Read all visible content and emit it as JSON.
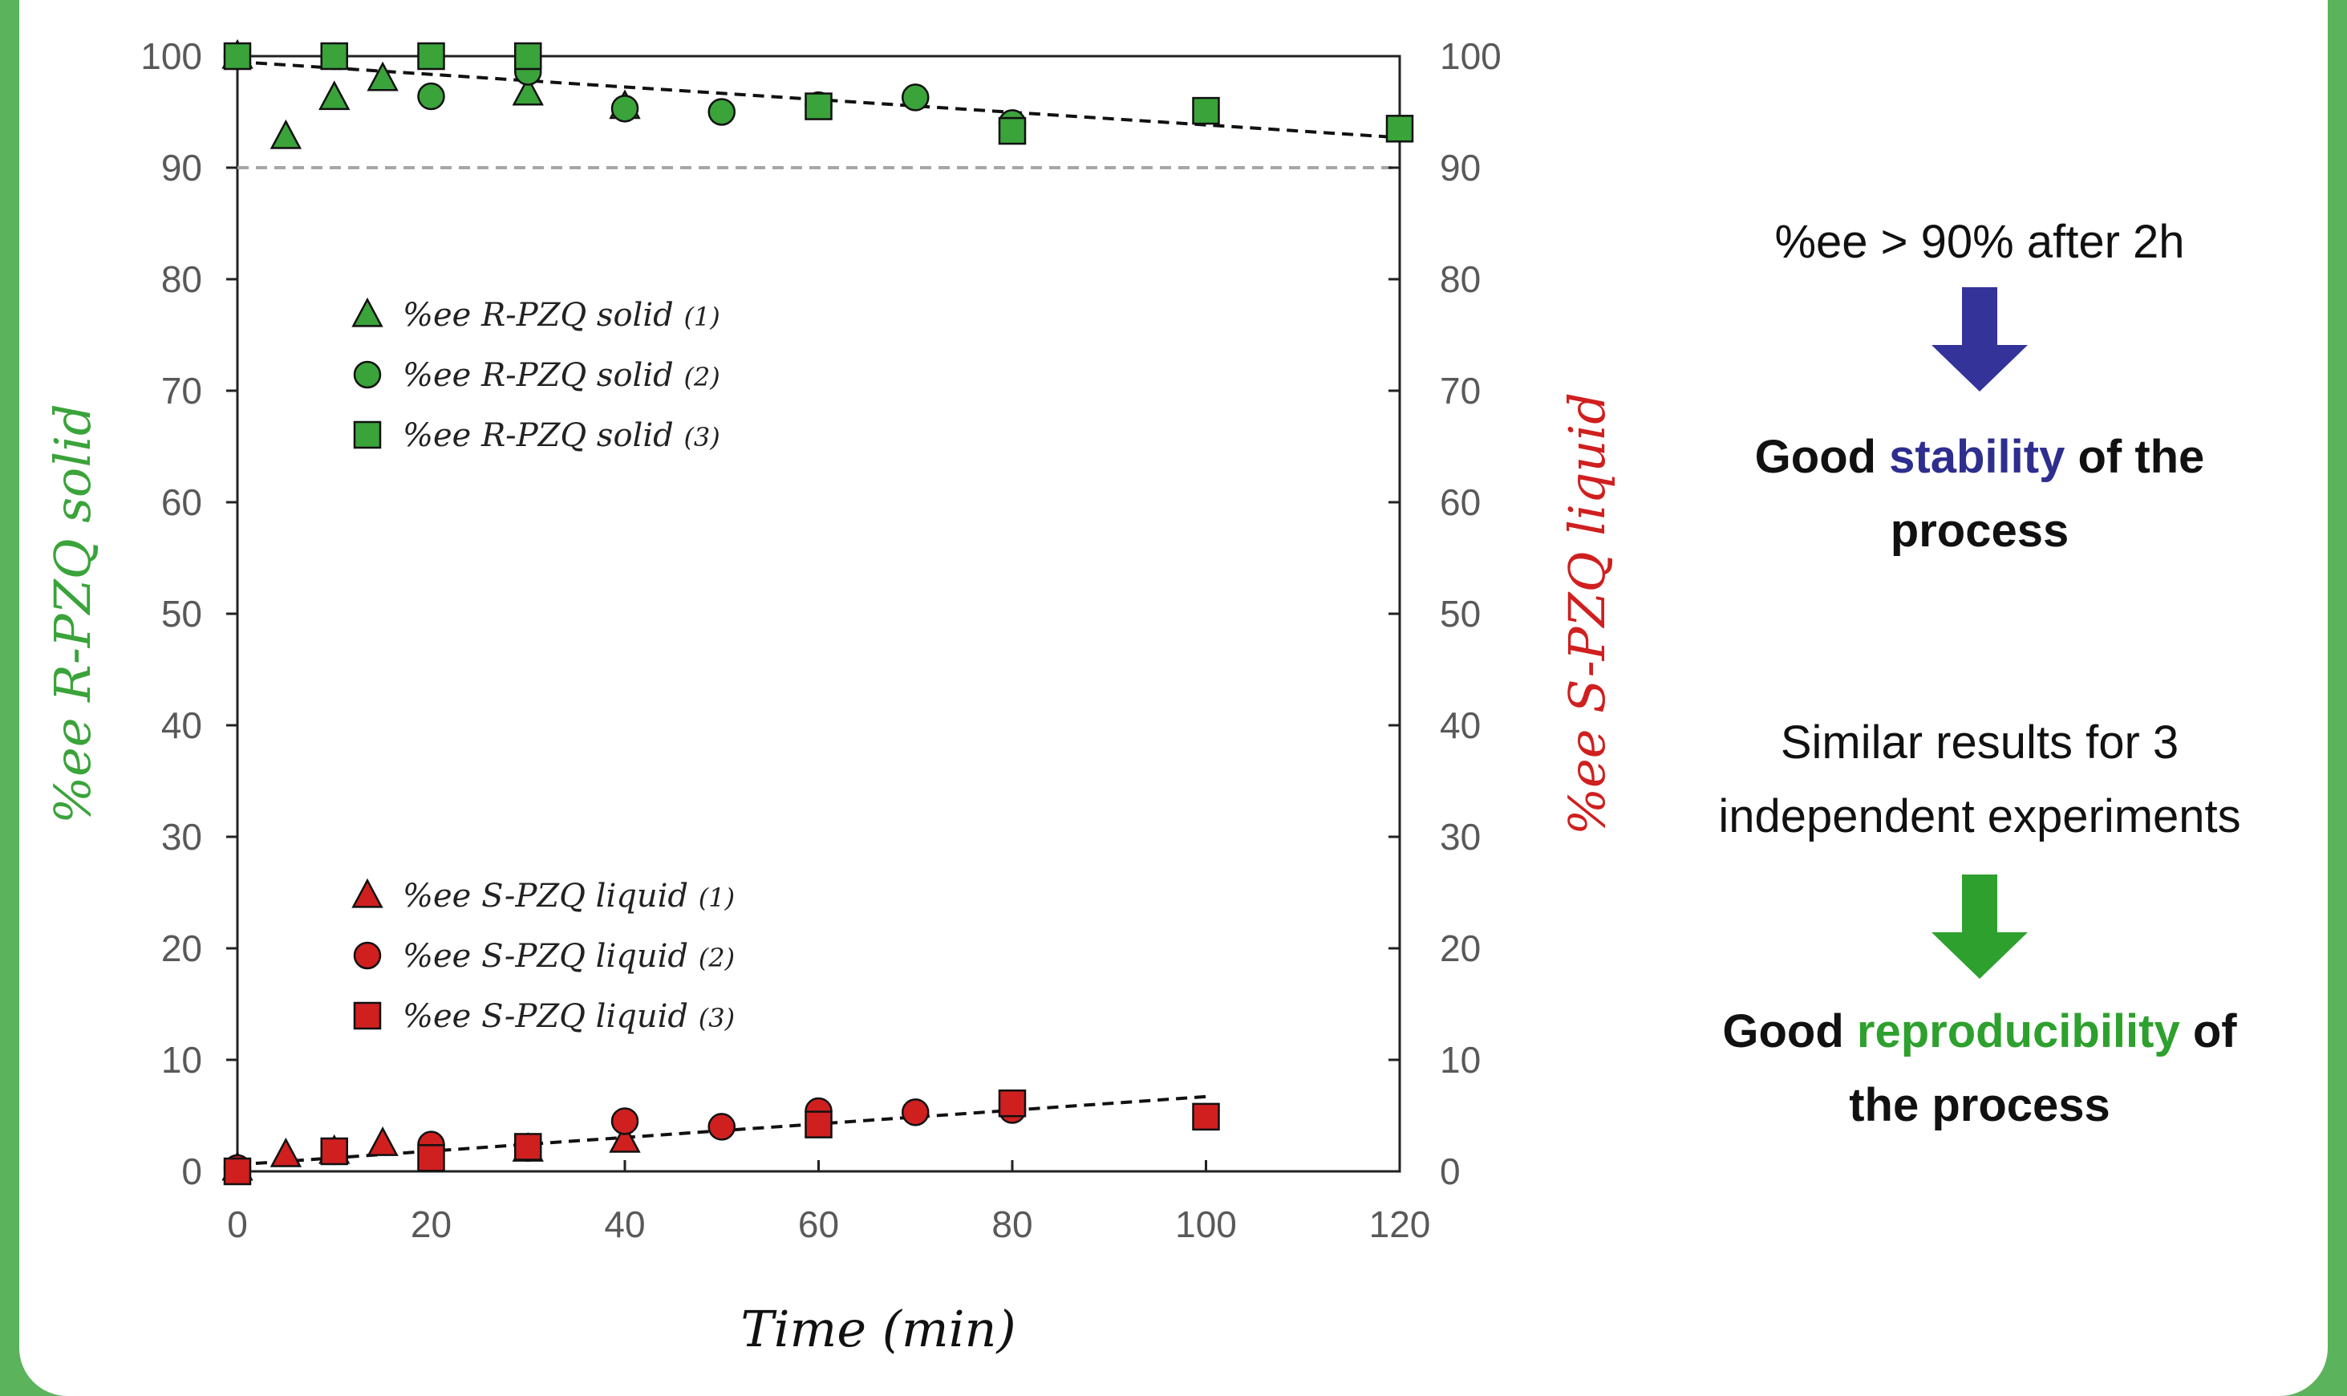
{
  "chart_data": {
    "type": "scatter",
    "xlabel": "Time (min)",
    "ylabel_left": "%ee R-PZQ solid",
    "ylabel_right": "%ee S-PZQ liquid",
    "xlim": [
      0,
      120
    ],
    "ylim": [
      0,
      100
    ],
    "x_ticks": [
      0,
      20,
      40,
      60,
      80,
      100,
      120
    ],
    "y_ticks": [
      0,
      10,
      20,
      30,
      40,
      50,
      60,
      70,
      80,
      90,
      100
    ],
    "reference_line": {
      "y": 90,
      "style": "dashed",
      "color": "#a6a6a6"
    },
    "series": [
      {
        "name": "%ee R-PZQ solid",
        "suffix": "(1)",
        "marker": "triangle",
        "color": "#3aa33a",
        "points": [
          [
            0,
            100
          ],
          [
            5,
            92.8
          ],
          [
            10,
            96.3
          ],
          [
            15,
            98
          ],
          [
            30,
            96.7
          ],
          [
            40,
            95.5
          ]
        ]
      },
      {
        "name": "%ee R-PZQ solid",
        "suffix": "(2)",
        "marker": "circle",
        "color": "#3aa33a",
        "points": [
          [
            0,
            100
          ],
          [
            10,
            100
          ],
          [
            20,
            96.4
          ],
          [
            30,
            98.6
          ],
          [
            40,
            95.3
          ],
          [
            50,
            95
          ],
          [
            60,
            95.6
          ],
          [
            70,
            96.3
          ],
          [
            80,
            94
          ]
        ]
      },
      {
        "name": "%ee R-PZQ solid",
        "suffix": "(3)",
        "marker": "square",
        "color": "#3aa33a",
        "points": [
          [
            0,
            100
          ],
          [
            10,
            100
          ],
          [
            20,
            100
          ],
          [
            30,
            100
          ],
          [
            60,
            95.5
          ],
          [
            80,
            93.3
          ],
          [
            100,
            95.1
          ],
          [
            120,
            93.5
          ]
        ]
      },
      {
        "name": "%ee S-PZQ liquid",
        "suffix": "(1)",
        "marker": "triangle",
        "color": "#d01f1f",
        "points": [
          [
            0,
            0.3
          ],
          [
            5,
            1.5
          ],
          [
            10,
            1.8
          ],
          [
            15,
            2.5
          ],
          [
            30,
            2
          ],
          [
            40,
            2.8
          ]
        ]
      },
      {
        "name": "%ee S-PZQ liquid",
        "suffix": "(2)",
        "marker": "circle",
        "color": "#d01f1f",
        "points": [
          [
            0,
            0.3
          ],
          [
            10,
            1.8
          ],
          [
            20,
            2.4
          ],
          [
            30,
            2.1
          ],
          [
            40,
            4.5
          ],
          [
            50,
            4
          ],
          [
            60,
            5.4
          ],
          [
            70,
            5.3
          ],
          [
            80,
            5.5
          ]
        ]
      },
      {
        "name": "%ee S-PZQ liquid",
        "suffix": "(3)",
        "marker": "square",
        "color": "#d01f1f",
        "points": [
          [
            0,
            0
          ],
          [
            10,
            1.8
          ],
          [
            20,
            1.2
          ],
          [
            30,
            2.2
          ],
          [
            60,
            4.2
          ],
          [
            80,
            6.1
          ],
          [
            100,
            4.9
          ]
        ]
      }
    ],
    "trendlines": [
      {
        "from": [
          0,
          99.5
        ],
        "to": [
          120,
          92.7
        ],
        "style": "dashed",
        "color": "#111111"
      },
      {
        "from": [
          0,
          0.6
        ],
        "to": [
          100,
          6.7
        ],
        "style": "dashed",
        "color": "#111111"
      }
    ],
    "legend_placement": "inside-left"
  },
  "annotations": {
    "condition_text": "%ee > 90% after 2h",
    "stability_prefix": "Good ",
    "stability_word": "stability",
    "stability_suffix": " of the",
    "stability_line2": "process",
    "similar_line1": "Similar results for 3",
    "similar_line2": "independent experiments",
    "repro_prefix": "Good ",
    "repro_word": "reproducibility",
    "repro_suffix": " of",
    "repro_line2": "the process"
  },
  "colors": {
    "frame": "#5bb35b",
    "green_marker": "#3aa33a",
    "red_marker": "#d01f1f",
    "stability_accent": "#2e2e8f",
    "reproducibility_accent": "#2ea02e",
    "blue_arrow": "#33339a",
    "green_arrow": "#2ea02e"
  }
}
